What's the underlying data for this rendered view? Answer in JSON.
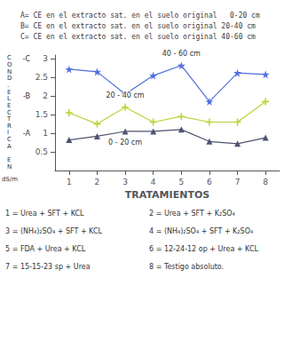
{
  "chart_data": {
    "type": "line",
    "title": [
      "A= CE en el extracto sat. en el suelo original   0-20 cm",
      "B= CE en el extracto sat. en el suelo original 20-40 cm",
      "C= CE en el extracto sat. en el suelo original 40-60 cm"
    ],
    "xlabel": "TRATAMIENTOS",
    "ylabel": "COND.ELECTRICA EN",
    "ylabel_unit": "dS/m",
    "x": [
      1,
      2,
      3,
      4,
      5,
      6,
      7,
      8
    ],
    "series": [
      {
        "name": "40 - 60 cm",
        "marker": "star",
        "values": [
          2.72,
          2.65,
          2.05,
          2.55,
          2.82,
          1.85,
          2.62,
          2.58
        ]
      },
      {
        "name": "20 - 40 cm",
        "marker": "plus",
        "values": [
          1.55,
          1.25,
          1.7,
          1.3,
          1.45,
          1.3,
          1.3,
          1.85
        ]
      },
      {
        "name": "0 - 20 cm",
        "marker": "triangle",
        "values": [
          0.82,
          0.92,
          1.05,
          1.05,
          1.1,
          0.78,
          0.72,
          0.88
        ]
      }
    ],
    "xlim": [
      0.5,
      8.5
    ],
    "xticks": [
      1,
      2,
      3,
      4,
      5,
      6,
      7,
      8
    ],
    "ylim": [
      0,
      3.1
    ],
    "yticks": [
      0.5,
      1,
      1.5,
      2,
      2.5,
      3
    ],
    "annotations": [
      {
        "text": "-C",
        "y": 3
      },
      {
        "text": "-B",
        "y": 2
      },
      {
        "text": "-A",
        "y": 1
      }
    ],
    "treatments": [
      [
        "1 = Urea + SFT + KCL",
        "3 = (NH₄)₂SO₄ + SFT + KCL",
        "5 = FDA + Urea + KCL",
        "7 = 15-15-23 sp + Urea"
      ],
      [
        "2 = Urea + SFT + K₂SO₄",
        "4 = (NH₄)₂SO₄ + SFT + K₂SO₄",
        "6 = 12-24-12 op + Urea + KCL",
        "8 = Testigo absoluto."
      ]
    ],
    "grid": false,
    "legend": false
  }
}
